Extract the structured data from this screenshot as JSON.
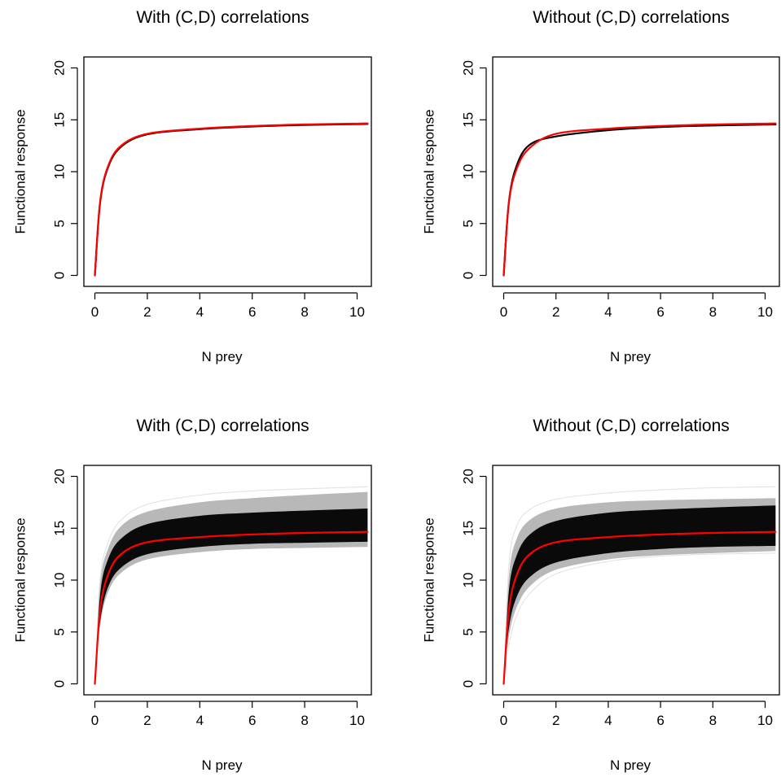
{
  "chart_data": [
    {
      "type": "line",
      "title": "With (C,D) correlations",
      "xlabel": "N prey",
      "ylabel": "Functional response",
      "xlim": [
        0,
        10.4
      ],
      "ylim": [
        0,
        20
      ],
      "xticks": [
        "0",
        "2",
        "4",
        "6",
        "8",
        "10"
      ],
      "yticks": [
        "0",
        "5",
        "10",
        "15",
        "20"
      ],
      "grid": false,
      "series": [
        {
          "values": [
            [
              0,
              0
            ],
            [
              0.2,
              7.0
            ],
            [
              0.5,
              10.4
            ],
            [
              1,
              12.4
            ],
            [
              2,
              13.6
            ],
            [
              4,
              14.1
            ],
            [
              6,
              14.35
            ],
            [
              8,
              14.5
            ],
            [
              10.4,
              14.6
            ]
          ],
          "color": "#000000"
        },
        {
          "values": [
            [
              0,
              0
            ],
            [
              0.2,
              7.1
            ],
            [
              0.5,
              10.5
            ],
            [
              1,
              12.5
            ],
            [
              2,
              13.65
            ],
            [
              4,
              14.15
            ],
            [
              6,
              14.4
            ],
            [
              8,
              14.55
            ],
            [
              10.4,
              14.65
            ]
          ],
          "color": "#ff0000"
        }
      ],
      "band": null
    },
    {
      "type": "line",
      "title": "Without (C,D) correlations",
      "xlabel": "N prey",
      "ylabel": "Functional response",
      "xlim": [
        0,
        10.4
      ],
      "ylim": [
        0,
        20
      ],
      "xticks": [
        "0",
        "2",
        "4",
        "6",
        "8",
        "10"
      ],
      "yticks": [
        "0",
        "5",
        "10",
        "15",
        "20"
      ],
      "grid": false,
      "series": [
        {
          "values": [
            [
              0,
              0
            ],
            [
              0.2,
              7.1
            ],
            [
              0.5,
              10.6
            ],
            [
              1,
              12.6
            ],
            [
              2,
              13.4
            ],
            [
              4,
              14.0
            ],
            [
              6,
              14.3
            ],
            [
              8,
              14.45
            ],
            [
              10.4,
              14.55
            ]
          ],
          "color": "#000000"
        },
        {
          "values": [
            [
              0,
              0
            ],
            [
              0.2,
              7.0
            ],
            [
              0.5,
              10.3
            ],
            [
              1,
              12.3
            ],
            [
              2,
              13.65
            ],
            [
              4,
              14.15
            ],
            [
              6,
              14.4
            ],
            [
              8,
              14.55
            ],
            [
              10.4,
              14.65
            ]
          ],
          "color": "#ff0000"
        }
      ],
      "band": null
    },
    {
      "type": "line",
      "title": "With (C,D) correlations",
      "xlabel": "N prey",
      "ylabel": "Functional response",
      "xlim": [
        0,
        10.4
      ],
      "ylim": [
        0,
        20
      ],
      "xticks": [
        "0",
        "2",
        "4",
        "6",
        "8",
        "10"
      ],
      "yticks": [
        "0",
        "5",
        "10",
        "15",
        "20"
      ],
      "grid": false,
      "series": [
        {
          "values": [
            [
              0,
              0
            ],
            [
              0.2,
              7.1
            ],
            [
              0.5,
              10.5
            ],
            [
              1,
              12.5
            ],
            [
              2,
              13.65
            ],
            [
              4,
              14.15
            ],
            [
              6,
              14.4
            ],
            [
              8,
              14.55
            ],
            [
              10.4,
              14.65
            ]
          ],
          "color": "#ff0000"
        }
      ],
      "band": {
        "core_low": [
          [
            0,
            0
          ],
          [
            0.2,
            6.0
          ],
          [
            0.5,
            9.3
          ],
          [
            1,
            11.2
          ],
          [
            2,
            12.5
          ],
          [
            4,
            13.2
          ],
          [
            6,
            13.5
          ],
          [
            8,
            13.6
          ],
          [
            10.4,
            13.7
          ]
        ],
        "core_high": [
          [
            0,
            0
          ],
          [
            0.2,
            8.6
          ],
          [
            0.5,
            12.0
          ],
          [
            1,
            14.0
          ],
          [
            2,
            15.4
          ],
          [
            4,
            16.2
          ],
          [
            6,
            16.5
          ],
          [
            8,
            16.7
          ],
          [
            10.4,
            16.9
          ]
        ],
        "outer_low": [
          [
            0,
            0
          ],
          [
            0.2,
            5.6
          ],
          [
            0.5,
            8.8
          ],
          [
            1,
            10.7
          ],
          [
            2,
            12.0
          ],
          [
            4,
            12.7
          ],
          [
            6,
            13.0
          ],
          [
            8,
            13.1
          ],
          [
            10.4,
            13.2
          ]
        ],
        "outer_high": [
          [
            0,
            0
          ],
          [
            0.2,
            9.6
          ],
          [
            0.5,
            13.0
          ],
          [
            1,
            15.2
          ],
          [
            2,
            16.6
          ],
          [
            4,
            17.5
          ],
          [
            6,
            17.9
          ],
          [
            8,
            18.2
          ],
          [
            10.4,
            18.5
          ]
        ],
        "stray": [
          [
            [
              0,
              0
            ],
            [
              0.2,
              10.0
            ],
            [
              0.5,
              13.6
            ],
            [
              1,
              15.8
            ],
            [
              2,
              17.3
            ],
            [
              4,
              18.2
            ],
            [
              6,
              18.6
            ],
            [
              8,
              18.8
            ],
            [
              10.4,
              19.0
            ]
          ]
        ]
      }
    },
    {
      "type": "line",
      "title": "Without (C,D) correlations",
      "xlabel": "N prey",
      "ylabel": "Functional response",
      "xlim": [
        0,
        10.4
      ],
      "ylim": [
        0,
        20
      ],
      "xticks": [
        "0",
        "2",
        "4",
        "6",
        "8",
        "10"
      ],
      "yticks": [
        "0",
        "5",
        "10",
        "15",
        "20"
      ],
      "grid": false,
      "series": [
        {
          "values": [
            [
              0,
              0
            ],
            [
              0.2,
              7.1
            ],
            [
              0.5,
              10.5
            ],
            [
              1,
              12.5
            ],
            [
              2,
              13.65
            ],
            [
              4,
              14.15
            ],
            [
              6,
              14.4
            ],
            [
              8,
              14.55
            ],
            [
              10.4,
              14.65
            ]
          ],
          "color": "#ff0000"
        }
      ],
      "band": {
        "core_low": [
          [
            0,
            0
          ],
          [
            0.2,
            5.4
          ],
          [
            0.5,
            8.4
          ],
          [
            1,
            10.3
          ],
          [
            2,
            11.7
          ],
          [
            4,
            12.6
          ],
          [
            6,
            13.0
          ],
          [
            8,
            13.2
          ],
          [
            10.4,
            13.3
          ]
        ],
        "core_high": [
          [
            0,
            0
          ],
          [
            0.2,
            9.0
          ],
          [
            0.5,
            12.4
          ],
          [
            1,
            14.4
          ],
          [
            2,
            15.7
          ],
          [
            4,
            16.5
          ],
          [
            6,
            16.8
          ],
          [
            8,
            17.0
          ],
          [
            10.4,
            17.2
          ]
        ],
        "outer_low": [
          [
            0,
            0
          ],
          [
            0.2,
            4.6
          ],
          [
            0.5,
            7.4
          ],
          [
            1,
            9.4
          ],
          [
            2,
            11.0
          ],
          [
            4,
            12.0
          ],
          [
            6,
            12.4
          ],
          [
            8,
            12.6
          ],
          [
            10.4,
            12.8
          ]
        ],
        "outer_high": [
          [
            0,
            0
          ],
          [
            0.2,
            10.4
          ],
          [
            0.5,
            14.0
          ],
          [
            1,
            15.8
          ],
          [
            2,
            16.9
          ],
          [
            4,
            17.5
          ],
          [
            6,
            17.7
          ],
          [
            8,
            17.8
          ],
          [
            10.4,
            17.9
          ]
        ],
        "stray": [
          [
            [
              0,
              0
            ],
            [
              0.2,
              11.5
            ],
            [
              0.5,
              15.2
            ],
            [
              1,
              16.8
            ],
            [
              2,
              17.8
            ],
            [
              4,
              18.4
            ],
            [
              6,
              18.7
            ],
            [
              8,
              18.9
            ],
            [
              10.4,
              19.0
            ]
          ],
          [
            [
              0,
              0
            ],
            [
              0.2,
              3.8
            ],
            [
              0.5,
              6.6
            ],
            [
              1,
              8.7
            ],
            [
              2,
              10.6
            ],
            [
              4,
              11.8
            ],
            [
              6,
              12.3
            ],
            [
              8,
              12.5
            ],
            [
              10.4,
              12.6
            ]
          ]
        ]
      }
    }
  ]
}
